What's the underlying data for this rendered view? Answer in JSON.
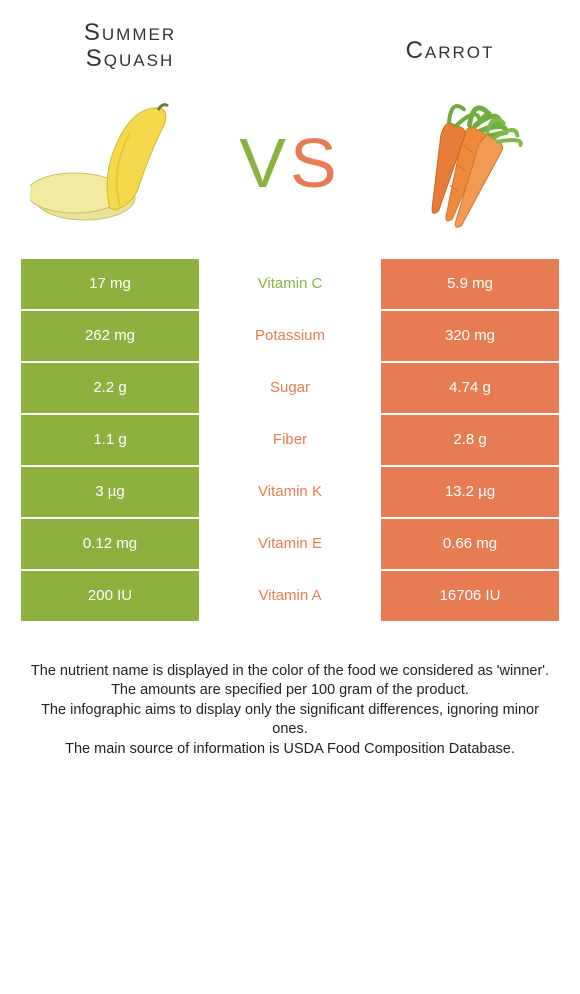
{
  "left": {
    "title": "Summer Squash",
    "color": "#8db13f"
  },
  "right": {
    "title": "Carrot",
    "color": "#e77c52"
  },
  "vs": {
    "v": "V",
    "s": "S"
  },
  "rows": [
    {
      "nutrient": "Vitamin C",
      "left": "17 mg",
      "right": "5.9 mg",
      "winner": "left"
    },
    {
      "nutrient": "Potassium",
      "left": "262 mg",
      "right": "320 mg",
      "winner": "right"
    },
    {
      "nutrient": "Sugar",
      "left": "2.2 g",
      "right": "4.74 g",
      "winner": "right"
    },
    {
      "nutrient": "Fiber",
      "left": "1.1 g",
      "right": "2.8 g",
      "winner": "right"
    },
    {
      "nutrient": "Vitamin K",
      "left": "3 µg",
      "right": "13.2 µg",
      "winner": "right"
    },
    {
      "nutrient": "Vitamin E",
      "left": "0.12 mg",
      "right": "0.66 mg",
      "winner": "right"
    },
    {
      "nutrient": "Vitamin A",
      "left": "200 IU",
      "right": "16706 IU",
      "winner": "right"
    }
  ],
  "footnotes": [
    "The nutrient name is displayed in the color of the food we considered as 'winner'.",
    "The amounts are specified per 100 gram of the product.",
    "The infographic aims to display only the significant differences, ignoring minor ones.",
    "The main source of information is USDA Food Composition Database."
  ]
}
